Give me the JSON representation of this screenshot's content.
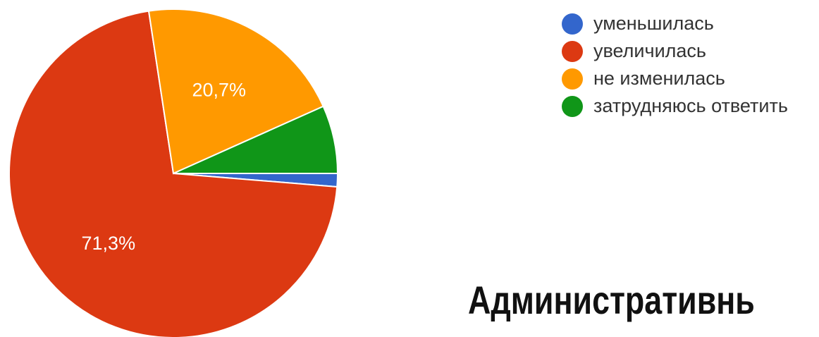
{
  "chart_data": {
    "type": "pie",
    "categories": [
      "уменьшилась",
      "увеличилась",
      "не изменилась",
      "затрудняюсь ответить"
    ],
    "values": [
      1.3,
      71.3,
      20.7,
      6.7
    ],
    "colors": [
      "#3366cc",
      "#dc3912",
      "#ff9900",
      "#109618"
    ],
    "data_labels": [
      "",
      "71,3%",
      "20,7%",
      ""
    ],
    "legend_position": "top-right"
  },
  "heading": "Административнь"
}
